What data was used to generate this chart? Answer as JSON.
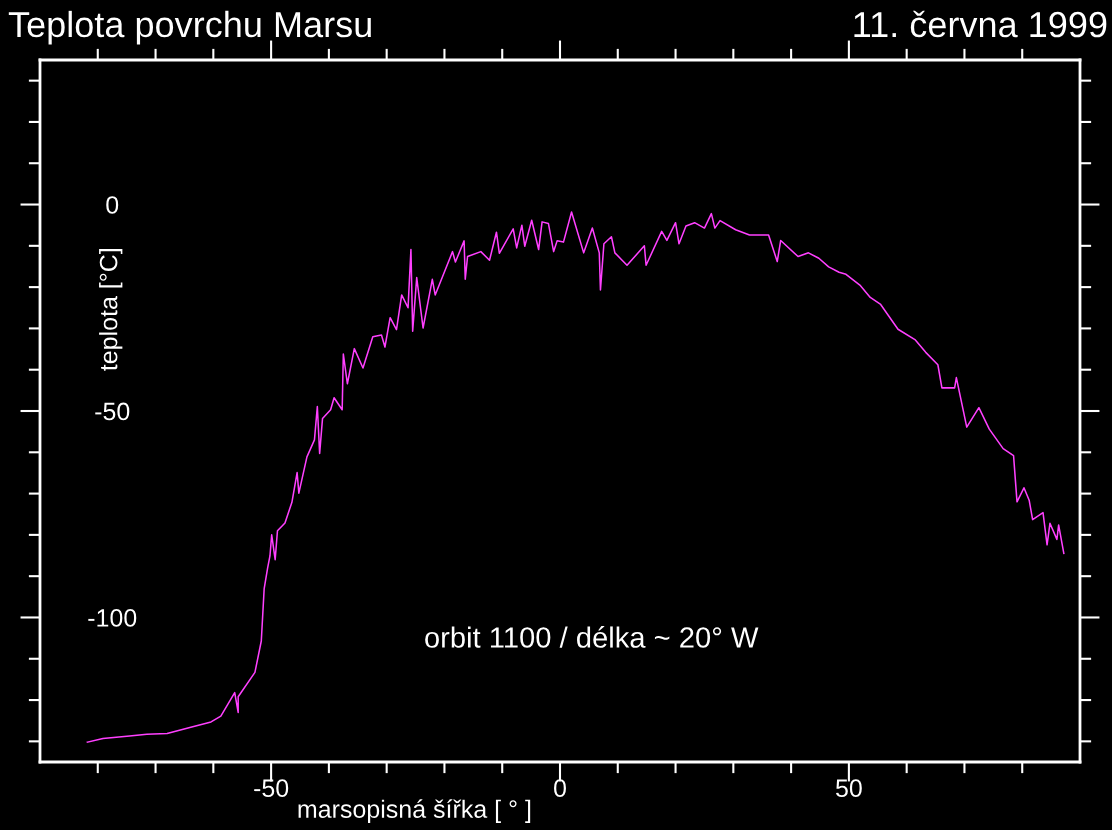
{
  "chart_data": {
    "type": "line",
    "title": "Teplota povrchu Marsu",
    "subtitle": "11. června 1999",
    "xlabel": "marsopisná šířka [ ° ]",
    "ylabel": "teplota [°C]",
    "annotations": [
      "orbit 1100 / délka ~ 20° W"
    ],
    "xlim": [
      -90,
      90
    ],
    "ylim": [
      -135,
      35
    ],
    "xticks": [
      {
        "value": -80,
        "label": null
      },
      {
        "value": -70,
        "label": null
      },
      {
        "value": -60,
        "label": null
      },
      -50,
      {
        "value": -40,
        "label": null
      },
      {
        "value": -30,
        "label": null
      },
      {
        "value": -20,
        "label": null
      },
      {
        "value": -10,
        "label": null
      },
      0,
      {
        "value": 10,
        "label": null
      },
      {
        "value": 20,
        "label": null
      },
      {
        "value": 30,
        "label": null
      },
      {
        "value": 40,
        "label": null
      },
      50,
      {
        "value": 60,
        "label": null
      },
      {
        "value": 70,
        "label": null
      },
      {
        "value": 80,
        "label": null
      }
    ],
    "yticks": [
      {
        "value": 30,
        "label": null
      },
      {
        "value": 20,
        "label": null
      },
      {
        "value": 10,
        "label": null
      },
      0,
      {
        "value": -10,
        "label": null
      },
      {
        "value": -20,
        "label": null
      },
      {
        "value": -30,
        "label": null
      },
      {
        "value": -40,
        "label": null
      },
      -50,
      {
        "value": -60,
        "label": null
      },
      {
        "value": -70,
        "label": null
      },
      {
        "value": -80,
        "label": null
      },
      {
        "value": -90,
        "label": null
      },
      -100,
      {
        "value": -110,
        "label": null
      },
      {
        "value": -120,
        "label": null
      },
      {
        "value": -130,
        "label": null
      }
    ],
    "grid": false,
    "marker": "none",
    "line_style": "solid",
    "series": [
      {
        "color": "#ff40ff",
        "x": [
          -81.8,
          -79.1,
          -74.5,
          -71.5,
          -68.0,
          -63.9,
          -60.4,
          -58.7,
          -56.3,
          -55.7,
          -55.7,
          -52.8,
          -51.7,
          -51.2,
          -50.6,
          -50.2,
          -49.9,
          -49.3,
          -48.9,
          -47.6,
          -46.4,
          -45.5,
          -45.2,
          -43.8,
          -42.5,
          -42.0,
          -41.6,
          -41.1,
          -39.7,
          -39.1,
          -37.7,
          -37.5,
          -36.8,
          -35.6,
          -34.1,
          -32.4,
          -30.9,
          -30.3,
          -29.4,
          -28.3,
          -27.4,
          -26.3,
          -25.8,
          -25.5,
          -24.8,
          -23.7,
          -22.1,
          -21.6,
          -18.6,
          -18.1,
          -16.6,
          -16.4,
          -16.0,
          -13.7,
          -12.2,
          -11.0,
          -10.5,
          -8.1,
          -7.5,
          -6.6,
          -6.1,
          -4.9,
          -3.7,
          -3.1,
          -2.0,
          -1.1,
          -0.5,
          0.6,
          2.0,
          4.1,
          5.6,
          6.8,
          7.0,
          7.6,
          8.9,
          9.5,
          11.6,
          14.6,
          14.9,
          17.6,
          18.5,
          20.0,
          20.6,
          21.8,
          23.3,
          25.0,
          26.2,
          26.8,
          27.7,
          30.4,
          32.8,
          36.1,
          37.6,
          38.2,
          41.2,
          43.0,
          44.8,
          46.5,
          48.3,
          49.5,
          51.9,
          53.7,
          55.5,
          58.5,
          61.5,
          63.3,
          65.4,
          66.1,
          68.3,
          68.6,
          70.4,
          72.5,
          74.3,
          76.7,
          78.5,
          79.1,
          80.3,
          81.2,
          81.8,
          83.6,
          84.3,
          84.8,
          86.0,
          86.3,
          87.2
        ],
        "values": [
          -130.2,
          -129.3,
          -128.7,
          -128.3,
          -128.1,
          -126.6,
          -125.3,
          -123.9,
          -118.2,
          -123.0,
          -119.2,
          -113.3,
          -105.7,
          -93.0,
          -88.0,
          -85.1,
          -80.0,
          -86.0,
          -79.0,
          -77.1,
          -72.1,
          -64.9,
          -69.9,
          -61.1,
          -57.0,
          -48.9,
          -60.3,
          -51.8,
          -49.7,
          -46.8,
          -49.7,
          -36.2,
          -43.4,
          -34.9,
          -39.6,
          -32.0,
          -31.6,
          -34.5,
          -27.4,
          -30.3,
          -21.9,
          -25.0,
          -10.9,
          -30.7,
          -17.7,
          -29.9,
          -18.1,
          -21.9,
          -11.4,
          -13.9,
          -8.8,
          -18.1,
          -12.6,
          -11.4,
          -13.5,
          -6.7,
          -11.8,
          -5.9,
          -10.5,
          -5.0,
          -10.1,
          -3.8,
          -10.9,
          -4.2,
          -4.6,
          -11.4,
          -8.8,
          -9.1,
          -1.8,
          -11.7,
          -5.7,
          -11.7,
          -20.7,
          -9.5,
          -7.8,
          -11.7,
          -14.7,
          -10.0,
          -14.7,
          -6.5,
          -8.7,
          -4.4,
          -9.5,
          -5.2,
          -4.4,
          -5.7,
          -2.2,
          -5.7,
          -3.9,
          -6.1,
          -7.4,
          -7.4,
          -13.8,
          -8.7,
          -12.6,
          -11.7,
          -13.0,
          -15.1,
          -16.4,
          -16.9,
          -19.5,
          -22.5,
          -24.2,
          -30.2,
          -32.8,
          -35.8,
          -38.8,
          -44.4,
          -44.4,
          -41.9,
          -53.9,
          -49.2,
          -54.4,
          -59.1,
          -60.8,
          -72.0,
          -68.6,
          -71.6,
          -76.3,
          -74.6,
          -82.4,
          -77.2,
          -81.1,
          -77.6,
          -84.5
        ]
      }
    ]
  }
}
